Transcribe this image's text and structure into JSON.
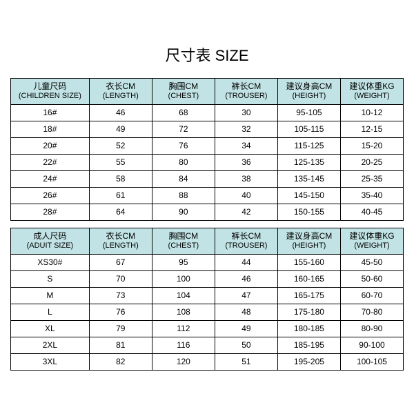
{
  "title": "尺寸表 SIZE",
  "headers": {
    "children": {
      "size": {
        "zh": "儿童尺码",
        "en": "(CHILDREN SIZE)"
      },
      "length": {
        "zh": "衣长CM",
        "en": "(LENGTH)"
      },
      "chest": {
        "zh": "胸围CM",
        "en": "(CHEST)"
      },
      "trouser": {
        "zh": "裤长CM",
        "en": "(TROUSER)"
      },
      "height": {
        "zh": "建议身高CM",
        "en": "(HEIGHT)"
      },
      "weight": {
        "zh": "建议体重KG",
        "en": "(WEIGHT)"
      }
    },
    "adult": {
      "size": {
        "zh": "成人尺码",
        "en": "(ADUIT SIZE)"
      },
      "length": {
        "zh": "衣长CM",
        "en": "(LENGTH)"
      },
      "chest": {
        "zh": "胸围CM",
        "en": "(CHEST)"
      },
      "trouser": {
        "zh": "裤长CM",
        "en": "(TROUSER)"
      },
      "height": {
        "zh": "建议身高CM",
        "en": "(HEIGHT)"
      },
      "weight": {
        "zh": "建议体重KG",
        "en": "(WEIGHT)"
      }
    }
  },
  "children_rows": [
    {
      "size": "16#",
      "length": "46",
      "chest": "68",
      "trouser": "30",
      "height": "95-105",
      "weight": "10-12"
    },
    {
      "size": "18#",
      "length": "49",
      "chest": "72",
      "trouser": "32",
      "height": "105-115",
      "weight": "12-15"
    },
    {
      "size": "20#",
      "length": "52",
      "chest": "76",
      "trouser": "34",
      "height": "115-125",
      "weight": "15-20"
    },
    {
      "size": "22#",
      "length": "55",
      "chest": "80",
      "trouser": "36",
      "height": "125-135",
      "weight": "20-25"
    },
    {
      "size": "24#",
      "length": "58",
      "chest": "84",
      "trouser": "38",
      "height": "135-145",
      "weight": "25-35"
    },
    {
      "size": "26#",
      "length": "61",
      "chest": "88",
      "trouser": "40",
      "height": "145-150",
      "weight": "35-40"
    },
    {
      "size": "28#",
      "length": "64",
      "chest": "90",
      "trouser": "42",
      "height": "150-155",
      "weight": "40-45"
    }
  ],
  "adult_rows": [
    {
      "size": "XS30#",
      "length": "67",
      "chest": "95",
      "trouser": "44",
      "height": "155-160",
      "weight": "45-50"
    },
    {
      "size": "S",
      "length": "70",
      "chest": "100",
      "trouser": "46",
      "height": "160-165",
      "weight": "50-60"
    },
    {
      "size": "M",
      "length": "73",
      "chest": "104",
      "trouser": "47",
      "height": "165-175",
      "weight": "60-70"
    },
    {
      "size": "L",
      "length": "76",
      "chest": "108",
      "trouser": "48",
      "height": "175-180",
      "weight": "70-80"
    },
    {
      "size": "XL",
      "length": "79",
      "chest": "112",
      "trouser": "49",
      "height": "180-185",
      "weight": "80-90"
    },
    {
      "size": "2XL",
      "length": "81",
      "chest": "116",
      "trouser": "50",
      "height": "185-195",
      "weight": "90-100"
    },
    {
      "size": "3XL",
      "length": "82",
      "chest": "120",
      "trouser": "51",
      "height": "195-205",
      "weight": "100-105"
    }
  ],
  "colors": {
    "header_bg": "#c2e3e5",
    "border": "#000000",
    "background": "#ffffff"
  }
}
